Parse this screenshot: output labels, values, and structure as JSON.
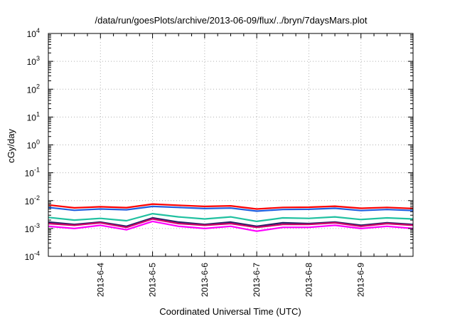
{
  "chart_data": {
    "type": "line",
    "title": "/data/run/goesPlots/archive/2013-06-09/flux/../bryn/7daysMars.plot",
    "xlabel": "Coordinated Universal Time (UTC)",
    "ylabel": "cGy/day",
    "yscale": "log",
    "ylim": [
      0.0001,
      10000
    ],
    "xlim": [
      "2013-06-03 00:00",
      "2013-06-10 00:00"
    ],
    "grid": true,
    "legend": "none",
    "x_tick_labels": [
      "2013-6-4",
      "2013-6-5",
      "2013-6-6",
      "2013-6-7",
      "2013-6-8",
      "2013-6-9"
    ],
    "y_tick_labels": [
      {
        "base": "10",
        "exp": "-4"
      },
      {
        "base": "10",
        "exp": "-3"
      },
      {
        "base": "10",
        "exp": "-2"
      },
      {
        "base": "10",
        "exp": "-1"
      },
      {
        "base": "10",
        "exp": "0"
      },
      {
        "base": "10",
        "exp": "1"
      },
      {
        "base": "10",
        "exp": "2"
      },
      {
        "base": "10",
        "exp": "3"
      },
      {
        "base": "10",
        "exp": "4"
      }
    ],
    "x": [
      "2013-06-03",
      "2013-06-03 12:00",
      "2013-06-04",
      "2013-06-04 12:00",
      "2013-06-05",
      "2013-06-05 12:00",
      "2013-06-06",
      "2013-06-06 12:00",
      "2013-06-07",
      "2013-06-07 12:00",
      "2013-06-08",
      "2013-06-08 12:00",
      "2013-06-09",
      "2013-06-09 12:00",
      "2013-06-10"
    ],
    "series": [
      {
        "color": "#ff0000",
        "values": [
          0.007,
          0.0055,
          0.006,
          0.0056,
          0.0075,
          0.0068,
          0.0062,
          0.0065,
          0.005,
          0.0057,
          0.0058,
          0.0063,
          0.0053,
          0.0057,
          0.0052
        ]
      },
      {
        "color": "#1f5fe0",
        "values": [
          0.0057,
          0.0045,
          0.005,
          0.0047,
          0.0062,
          0.0057,
          0.0052,
          0.0054,
          0.0042,
          0.0048,
          0.0049,
          0.0053,
          0.0044,
          0.0048,
          0.0044
        ]
      },
      {
        "color": "#20c0a0",
        "values": [
          0.0025,
          0.002,
          0.0023,
          0.0019,
          0.0034,
          0.0026,
          0.0022,
          0.0026,
          0.0018,
          0.0024,
          0.0023,
          0.0026,
          0.0021,
          0.0024,
          0.0022
        ]
      },
      {
        "color": "#222266",
        "values": [
          0.0017,
          0.0014,
          0.0017,
          0.0012,
          0.0024,
          0.0017,
          0.0014,
          0.0017,
          0.0012,
          0.0016,
          0.0015,
          0.0017,
          0.0013,
          0.0016,
          0.0014
        ]
      },
      {
        "color": "#d0006a",
        "values": [
          0.0015,
          0.0013,
          0.0016,
          0.0011,
          0.0022,
          0.0015,
          0.0013,
          0.0015,
          0.0011,
          0.0014,
          0.0014,
          0.0016,
          0.0012,
          0.0015,
          0.0013
        ]
      },
      {
        "color": "#ff00ff",
        "values": [
          0.0012,
          0.001,
          0.0013,
          0.0009,
          0.0018,
          0.0012,
          0.001,
          0.0012,
          0.0008,
          0.0011,
          0.0011,
          0.0013,
          0.001,
          0.0012,
          0.001
        ]
      }
    ]
  }
}
